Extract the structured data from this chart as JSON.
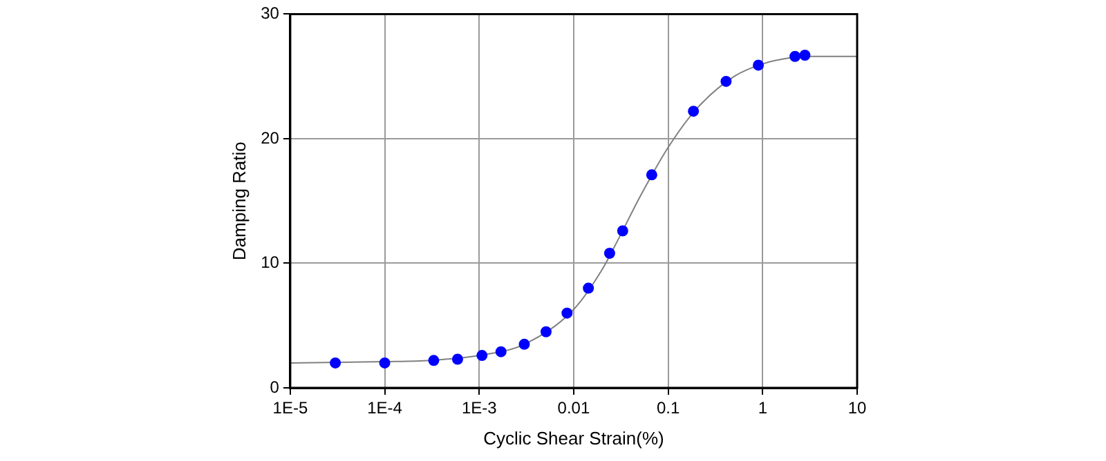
{
  "chart_data": {
    "type": "scatter",
    "xlabel": "Cyclic Shear Strain(%)",
    "ylabel": "Damping Ratio",
    "log": "x",
    "grid": true,
    "legend": false,
    "marker": "circle",
    "xlim": [
      1e-05,
      10
    ],
    "xticks": [
      {
        "value": 1e-05,
        "label": "1E-5"
      },
      {
        "value": 0.0001,
        "label": "1E-4"
      },
      {
        "value": 0.001,
        "label": "1E-3"
      },
      0.01,
      0.1,
      1,
      10
    ],
    "ylim": [
      0,
      30
    ],
    "yticks": [
      0,
      10,
      20,
      30
    ],
    "series": [
      {
        "type": "line",
        "color": "#808080",
        "marker": "none",
        "x": [
          1e-05,
          0.0001,
          0.0003,
          0.001,
          0.003,
          0.01,
          0.02,
          0.03,
          0.05,
          0.1,
          0.2,
          0.5,
          1,
          2,
          3,
          10
        ],
        "values": [
          2.0,
          2.1,
          2.2,
          2.6,
          3.5,
          6.3,
          9.5,
          12.0,
          15.3,
          19.3,
          22.4,
          25.0,
          26.0,
          26.5,
          26.6,
          26.6
        ]
      },
      {
        "color": "#0000ff",
        "x": [
          3e-05,
          0.0001,
          0.00033,
          0.00059,
          0.00107,
          0.0017,
          0.003,
          0.0051,
          0.0085,
          0.0143,
          0.024,
          0.033,
          0.067,
          0.185,
          0.41,
          0.9,
          2.2,
          2.8
        ],
        "values": [
          2.0,
          2.0,
          2.2,
          2.3,
          2.6,
          2.9,
          3.5,
          4.5,
          6.0,
          8.0,
          10.8,
          12.6,
          17.1,
          22.2,
          24.6,
          25.9,
          26.6,
          26.7
        ]
      }
    ]
  }
}
